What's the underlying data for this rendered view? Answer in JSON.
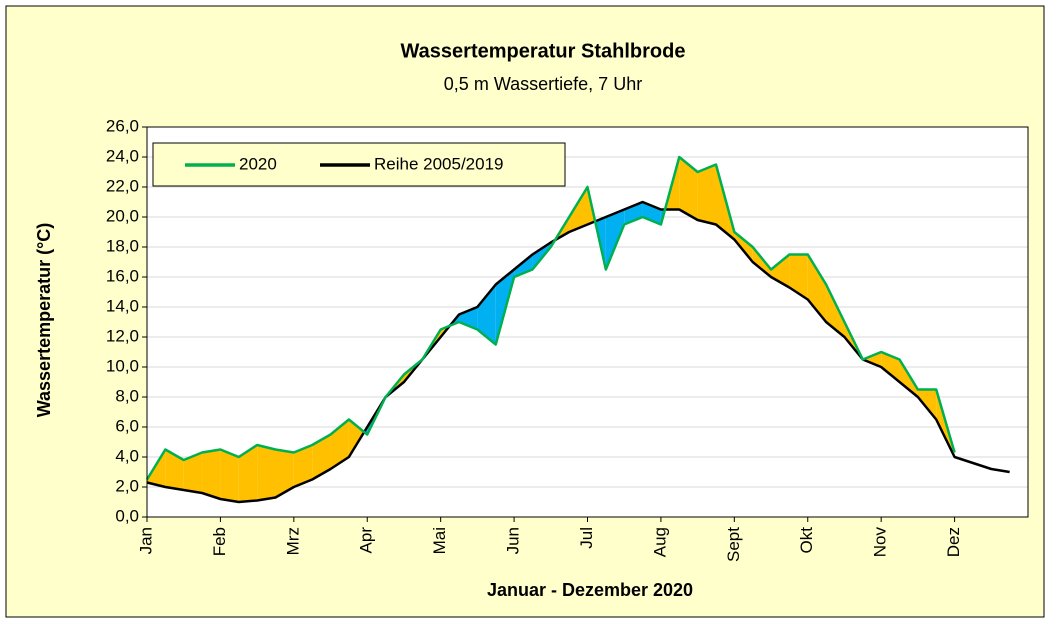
{
  "chart_data": {
    "type": "line",
    "title": "Wassertemperatur Stahlbrode",
    "subtitle": "0,5 m Wassertiefe, 7 Uhr",
    "x_label": "Januar - Dezember 2020",
    "y_label": "Wassertemperatur (°C)",
    "categories": [
      "Jan",
      null,
      null,
      null,
      "Feb",
      null,
      null,
      null,
      "Mrz",
      null,
      null,
      null,
      "Apr",
      null,
      null,
      null,
      "Mai",
      null,
      null,
      null,
      "Jun",
      null,
      null,
      null,
      "Jul",
      null,
      null,
      null,
      "Aug",
      null,
      null,
      null,
      "Sept",
      null,
      null,
      null,
      "Okt",
      null,
      null,
      null,
      "Nov",
      null,
      null,
      null,
      "Dez",
      null,
      null,
      null
    ],
    "series": [
      {
        "name": "2020",
        "color": "#00b050",
        "values": [
          2.5,
          4.5,
          3.8,
          4.3,
          4.5,
          4.0,
          4.8,
          4.5,
          4.3,
          4.8,
          5.5,
          6.5,
          5.5,
          8.0,
          9.5,
          10.5,
          12.5,
          13.0,
          12.5,
          11.5,
          16.0,
          16.5,
          18.0,
          20.0,
          22.0,
          16.5,
          19.5,
          20.0,
          19.5,
          24.0,
          23.0,
          23.5,
          19.0,
          18.0,
          16.5,
          17.5,
          17.5,
          15.5,
          13.0,
          10.5,
          11.0,
          10.5,
          8.5,
          8.5,
          4.3,
          null,
          null,
          null
        ]
      },
      {
        "name": "Reihe 2005/2019",
        "color": "#000000",
        "values": [
          2.3,
          2.0,
          1.8,
          1.6,
          1.2,
          1.0,
          1.1,
          1.3,
          2.0,
          2.5,
          3.2,
          4.0,
          6.0,
          8.0,
          9.0,
          10.5,
          12.0,
          13.5,
          14.0,
          15.5,
          16.5,
          17.5,
          18.3,
          19.0,
          19.5,
          20.0,
          20.5,
          21.0,
          20.5,
          20.5,
          19.8,
          19.5,
          18.5,
          17.0,
          16.0,
          15.3,
          14.5,
          13.0,
          12.0,
          10.5,
          10.0,
          9.0,
          8.0,
          6.5,
          4.0,
          3.6,
          3.2,
          3.0
        ]
      }
    ],
    "fill_above_color": "#ffc000",
    "fill_below_color": "#00b0f0",
    "ylim": [
      0,
      26
    ],
    "yticks": [
      {
        "value": 0,
        "label": "0,0"
      },
      {
        "value": 2,
        "label": "2,0"
      },
      {
        "value": 4,
        "label": "4,0"
      },
      {
        "value": 6,
        "label": "6,0"
      },
      {
        "value": 8,
        "label": "8,0"
      },
      {
        "value": 10,
        "label": "10,0"
      },
      {
        "value": 12,
        "label": "12,0"
      },
      {
        "value": 14,
        "label": "14,0"
      },
      {
        "value": 16,
        "label": "16,0"
      },
      {
        "value": 18,
        "label": "18,0"
      },
      {
        "value": 20,
        "label": "20,0"
      },
      {
        "value": 22,
        "label": "22,0"
      },
      {
        "value": 24,
        "label": "24,0"
      },
      {
        "value": 26,
        "label": "26,0"
      }
    ],
    "grid": true
  }
}
